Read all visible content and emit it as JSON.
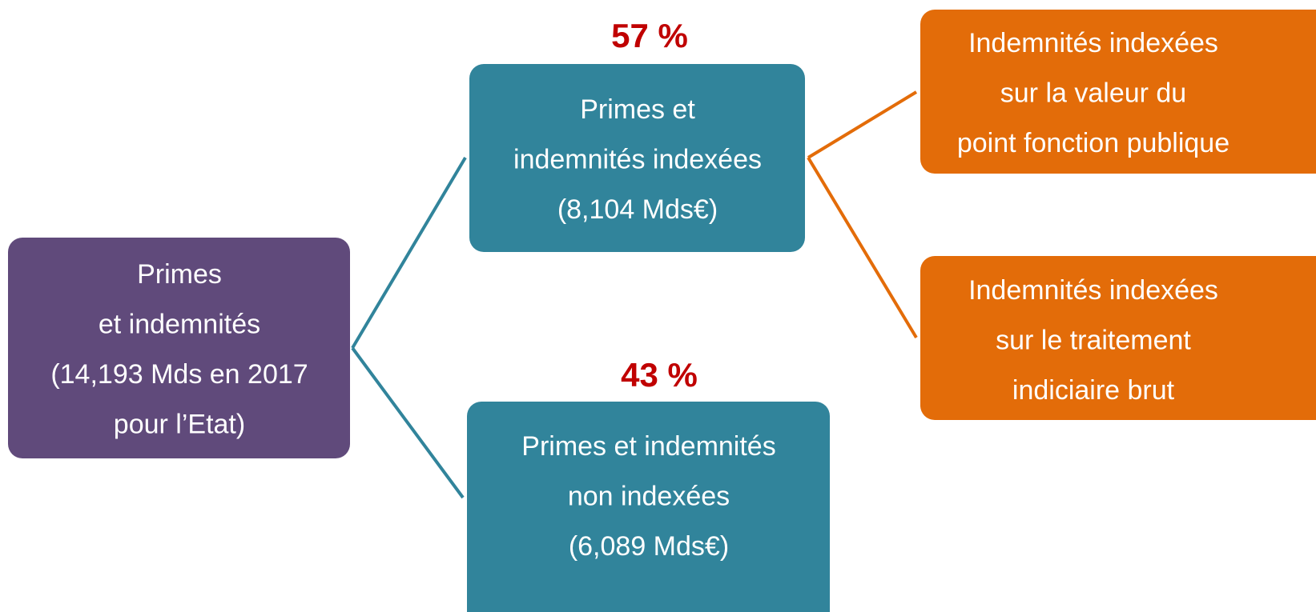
{
  "nodes": [
    {
      "lines": [
        "Primes",
        "et indemnités",
        "(14,193 Mds en 2017",
        "pour l’Etat)"
      ]
    },
    {
      "lines": [
        "Primes et",
        "indemnités indexées",
        "(8,104 Mds€)"
      ],
      "share": "57 %"
    },
    {
      "lines": [
        "Primes et indemnités",
        "non indexées",
        "(6,089 Mds€)"
      ],
      "share": "43 %"
    },
    {
      "lines": [
        "Indemnités indexées",
        "sur la valeur du",
        "point fonction publique"
      ]
    },
    {
      "lines": [
        "Indemnités indexées",
        "sur le traitement",
        "indiciaire brut"
      ]
    }
  ]
}
